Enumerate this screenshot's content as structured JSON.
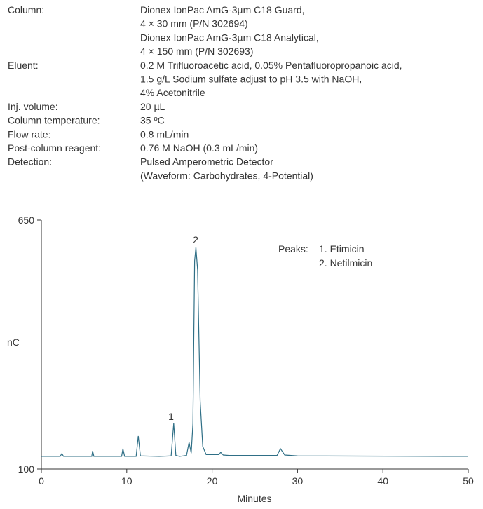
{
  "conditions": [
    {
      "label": "Column:",
      "lines": [
        "Dionex IonPac AmG-3µm C18 Guard,",
        "4 × 30 mm (P/N 302694)",
        "Dionex IonPac AmG-3µm C18 Analytical,",
        "4 × 150 mm (P/N 302693)"
      ]
    },
    {
      "label": "Eluent:",
      "lines": [
        "0.2 M Trifluoroacetic acid, 0.05% Pentafluoropropanoic acid,",
        "1.5 g/L Sodium sulfate adjust to pH 3.5 with NaOH,",
        "4% Acetonitrile"
      ]
    },
    {
      "label": "Inj. volume:",
      "lines": [
        "20 µL"
      ]
    },
    {
      "label": "Column temperature:",
      "lines": [
        "35 ºC"
      ]
    },
    {
      "label": "Flow rate:",
      "lines": [
        "0.8 mL/min"
      ]
    },
    {
      "label": "Post-column reagent:",
      "lines": [
        "0.76 M NaOH (0.3 mL/min)"
      ]
    },
    {
      "label": "Detection:",
      "lines": [
        "Pulsed Amperometric Detector",
        "(Waveform: Carbohydrates, 4-Potential)"
      ]
    }
  ],
  "chart_data": {
    "type": "line",
    "x_label": "Minutes",
    "y_label": "nC",
    "xlim": [
      0,
      50
    ],
    "xticks": [
      0,
      10,
      20,
      30,
      40,
      50
    ],
    "ylim": [
      100,
      650
    ],
    "yticks": [
      100,
      650
    ],
    "peaks_title": "Peaks:",
    "peaks": [
      "1. Etimicin",
      "2. Netilmicin"
    ],
    "peak_labels": [
      "1",
      "2"
    ],
    "series": [
      {
        "color": "#2f6f86",
        "x": [
          0,
          2.2,
          2.4,
          2.6,
          5.9,
          6.0,
          6.15,
          9.4,
          9.55,
          9.75,
          11.1,
          11.35,
          11.6,
          13.8,
          15.2,
          15.5,
          15.75,
          16.2,
          17.0,
          17.3,
          17.55,
          17.75,
          17.95,
          18.1,
          18.3,
          18.6,
          18.9,
          19.3,
          20.8,
          21.0,
          21.3,
          22.0,
          27.6,
          28.0,
          28.5,
          30,
          50
        ],
        "values": [
          128,
          128,
          134,
          128,
          128,
          140,
          128,
          128,
          145,
          128,
          128,
          173,
          129,
          128,
          129,
          201,
          130,
          128,
          130,
          159,
          135,
          200,
          560,
          590,
          540,
          250,
          150,
          132,
          132,
          137,
          131,
          130,
          130,
          145,
          131,
          129,
          128
        ]
      }
    ]
  }
}
